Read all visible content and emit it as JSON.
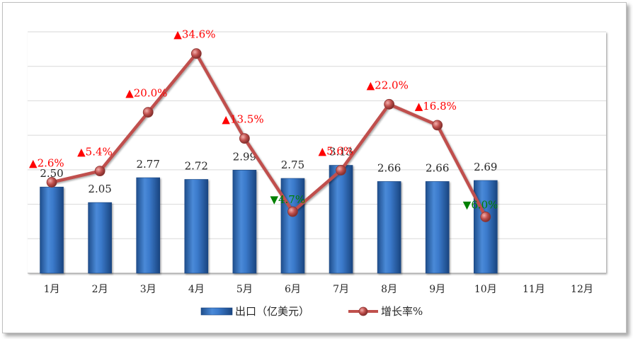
{
  "chart_data": {
    "type": "bar",
    "categories": [
      "1月",
      "2月",
      "3月",
      "4月",
      "5月",
      "6月",
      "7月",
      "8月",
      "9月",
      "10月",
      "11月",
      "12月"
    ],
    "series": [
      {
        "name": "出口（亿美元）",
        "type": "bar",
        "values": [
          2.5,
          2.05,
          2.77,
          2.72,
          2.99,
          2.75,
          3.13,
          2.66,
          2.66,
          2.69,
          null,
          null
        ]
      },
      {
        "name": "增长率%",
        "type": "line",
        "values": [
          2.6,
          5.4,
          20.0,
          34.6,
          13.5,
          -4.7,
          5.6,
          22.0,
          16.8,
          -6.0,
          null,
          null
        ]
      }
    ],
    "bar_labels": [
      "2.50",
      "2.05",
      "2.77",
      "2.72",
      "2.99",
      "2.75",
      "3.13",
      "2.66",
      "2.66",
      "2.69"
    ],
    "rate_labels": [
      "2.6%",
      "5.4%",
      "20.0%",
      "34.6%",
      "13.5%",
      "4.7%",
      "5.6%",
      "22.0%",
      "16.8%",
      "6.0%"
    ],
    "up_marker": "▲",
    "down_marker": "▼",
    "bar_ylim": [
      0,
      7
    ],
    "rate_ylim": [
      -20,
      40
    ],
    "gridlines": true,
    "legend_position": "bottom",
    "colors": {
      "bar": "#2e6fc0",
      "line": "#c0504d",
      "up": "#ff0000",
      "down": "#008000"
    }
  }
}
